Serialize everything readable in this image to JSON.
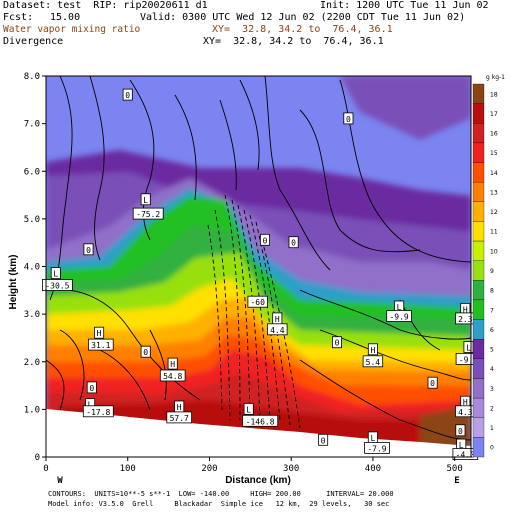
{
  "header": {
    "dataset": "Dataset: test  RIP: rip20020611 d1",
    "init": "Init: 1200 UTC Tue 11 Jun 02",
    "fcst_label": "Fcst:",
    "fcst_value": "15.00",
    "valid": "Valid: 0300 UTC Wed 12 Jun 02 (2200 CDT Tue 11 Jun 02)",
    "field1_name": "Water vapor mixing ratio",
    "field1_xy": "XY=  32.8, 34.2 to  76.4, 36.1",
    "field2_name": "Divergence",
    "field2_xy": "XY=  32.8, 34.2 to  76.4, 36.1"
  },
  "footer": {
    "contours": "CONTOURS:  UNITS=10**-5 s**-1  LOW= -140.00     HIGH= 200.00      INTERVAL= 20.000",
    "model_info": "Model info: V3.5.0  Grell     Blackadar  Simple ice   12 km,  29 levels,   30 sec"
  },
  "chart_data": {
    "type": "heatmap",
    "xlabel": "Distance (km)",
    "ylabel": "Height (km)",
    "xlim": [
      0,
      520
    ],
    "ylim": [
      0,
      8
    ],
    "x_ticks": [
      0,
      100,
      200,
      300,
      400,
      500
    ],
    "x_tick_labels": [
      "0",
      "100",
      "200",
      "300",
      "400",
      "500"
    ],
    "y_ticks": [
      0,
      1,
      2,
      3,
      4,
      5,
      6,
      7,
      8
    ],
    "y_tick_labels": [
      "0",
      "1.0",
      "2.0",
      "3.0",
      "4.0",
      "5.0",
      "6.0",
      "7.0",
      "8.0"
    ],
    "x_endpoints": {
      "left": "W",
      "right": "E"
    },
    "colorbar": {
      "unit": "g kg-1",
      "levels": [
        "0",
        "1",
        "2",
        "3",
        "4",
        "5",
        "6",
        "7",
        "8",
        "9",
        "10",
        "11",
        "12",
        "13",
        "14",
        "15",
        "16",
        "17",
        "18"
      ],
      "colors": [
        "#7b84f0",
        "#b8a0e8",
        "#a88ad8",
        "#9070c8",
        "#7a50b8",
        "#6a2ca0",
        "#2e9fc8",
        "#20c020",
        "#30b040",
        "#98e010",
        "#c8f000",
        "#ffe000",
        "#ffb000",
        "#ff8000",
        "#ff5000",
        "#f02020",
        "#d02020",
        "#b81010",
        "#8b4513"
      ]
    },
    "labels": [
      {
        "text": "0",
        "x": 100,
        "y": 7.6
      },
      {
        "text": "0",
        "x": 370,
        "y": 7.1
      },
      {
        "text": "L",
        "x": 122,
        "y": 5.4
      },
      {
        "text": "-75.2",
        "x": 125,
        "y": 5.1
      },
      {
        "text": "0",
        "x": 52,
        "y": 4.35
      },
      {
        "text": "0",
        "x": 268,
        "y": 4.55
      },
      {
        "text": "0",
        "x": 303,
        "y": 4.5
      },
      {
        "text": "L",
        "x": 12,
        "y": 3.85
      },
      {
        "text": "-30.5",
        "x": 14,
        "y": 3.6
      },
      {
        "text": "-60",
        "x": 259,
        "y": 3.25
      },
      {
        "text": "L",
        "x": 432,
        "y": 3.15
      },
      {
        "text": "-9.9",
        "x": 432,
        "y": 2.95
      },
      {
        "text": "H",
        "x": 513,
        "y": 3.1
      },
      {
        "text": "2.3",
        "x": 513,
        "y": 2.9
      },
      {
        "text": "H",
        "x": 283,
        "y": 2.9
      },
      {
        "text": "4.4",
        "x": 283,
        "y": 2.67
      },
      {
        "text": "H",
        "x": 65,
        "y": 2.6
      },
      {
        "text": "31.1",
        "x": 67,
        "y": 2.35
      },
      {
        "text": "0",
        "x": 122,
        "y": 2.2
      },
      {
        "text": "0",
        "x": 356,
        "y": 2.4
      },
      {
        "text": "H",
        "x": 400,
        "y": 2.25
      },
      {
        "text": "5.4",
        "x": 400,
        "y": 2.0
      },
      {
        "text": "L",
        "x": 517,
        "y": 2.3
      },
      {
        "text": "-9.9",
        "x": 517,
        "y": 2.05
      },
      {
        "text": "H",
        "x": 155,
        "y": 1.95
      },
      {
        "text": "54.8",
        "x": 155,
        "y": 1.7
      },
      {
        "text": "0",
        "x": 56,
        "y": 1.45
      },
      {
        "text": "0",
        "x": 473,
        "y": 1.55
      },
      {
        "text": "H",
        "x": 513,
        "y": 1.15
      },
      {
        "text": "4.3",
        "x": 513,
        "y": 0.95
      },
      {
        "text": "L",
        "x": 54,
        "y": 1.1
      },
      {
        "text": "-17.8",
        "x": 64,
        "y": 0.95
      },
      {
        "text": "H",
        "x": 163,
        "y": 1.05
      },
      {
        "text": "57.7",
        "x": 163,
        "y": 0.82
      },
      {
        "text": "L",
        "x": 248,
        "y": 1.0
      },
      {
        "text": "-146.8",
        "x": 262,
        "y": 0.75
      },
      {
        "text": "0",
        "x": 339,
        "y": 0.35
      },
      {
        "text": "L",
        "x": 400,
        "y": 0.4
      },
      {
        "text": "-7.9",
        "x": 405,
        "y": 0.18
      },
      {
        "text": "0",
        "x": 507,
        "y": 0.55
      },
      {
        "text": "L",
        "x": 508,
        "y": 0.25
      },
      {
        "text": "-4.0",
        "x": 513,
        "y": 0.05
      }
    ]
  }
}
